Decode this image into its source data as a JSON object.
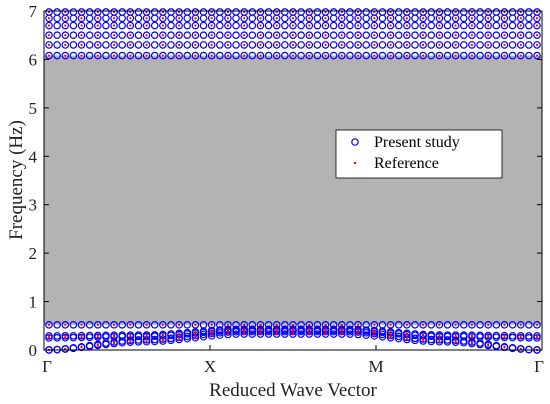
{
  "chart_data": {
    "type": "scatter",
    "title": "",
    "xlabel": "Reduced Wave Vector",
    "ylabel": "Frequency (Hz)",
    "ylim": [
      0,
      7
    ],
    "yticks": [
      0,
      1,
      2,
      3,
      4,
      5,
      6,
      7
    ],
    "xticks": [
      "Γ",
      "X",
      "M",
      "Γ"
    ],
    "grid": false,
    "band_gap": {
      "lower": 0.52,
      "upper": 6.08,
      "color": "#b3b3b3"
    },
    "legend": {
      "placement": "center-right",
      "entries": [
        "Present study",
        "Reference"
      ]
    },
    "series": [
      {
        "name": "Present study",
        "marker": "open-circle",
        "color": "#0000ff"
      },
      {
        "name": "Reference",
        "marker": "dot",
        "color": "#ff0000"
      }
    ],
    "lower_bands": [
      [
        0.0,
        0.17,
        0.33,
        0.33,
        0.17,
        0.0
      ],
      [
        0.0,
        0.21,
        0.38,
        0.38,
        0.21,
        0.0
      ],
      [
        0.25,
        0.28,
        0.41,
        0.41,
        0.28,
        0.25
      ],
      [
        0.29,
        0.31,
        0.43,
        0.43,
        0.31,
        0.29
      ],
      [
        0.52,
        0.52,
        0.52,
        0.52,
        0.52,
        0.52
      ]
    ],
    "upper_bands": [
      6.08,
      6.3,
      6.5,
      6.7,
      6.85,
      6.98
    ]
  }
}
